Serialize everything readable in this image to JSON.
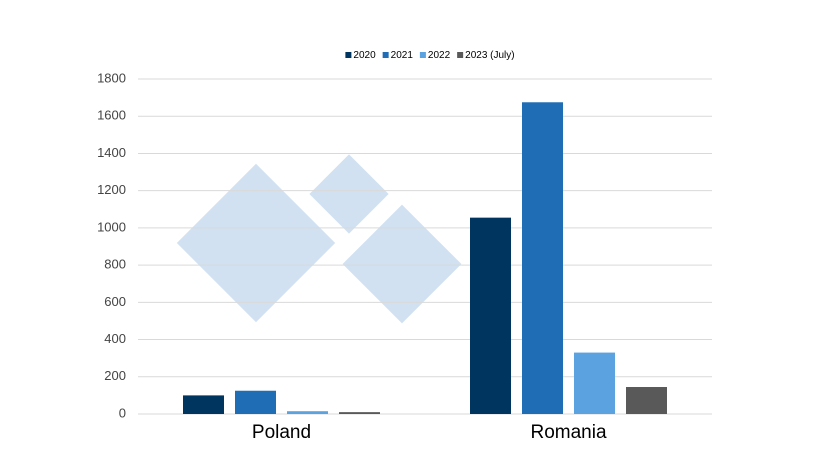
{
  "chart_data": {
    "type": "bar",
    "categories": [
      "Poland",
      "Romania"
    ],
    "series": [
      {
        "name": "2020",
        "color": "#003560",
        "values": [
          100,
          1055
        ]
      },
      {
        "name": "2021",
        "color": "#1f6eb5",
        "values": [
          125,
          1675
        ]
      },
      {
        "name": "2022",
        "color": "#5aa2e0",
        "values": [
          15,
          330
        ]
      },
      {
        "name": "2023 (July)",
        "color": "#595959",
        "values": [
          10,
          145
        ]
      }
    ],
    "ylim": [
      0,
      1800
    ],
    "yticks": [
      0,
      200,
      400,
      600,
      800,
      1000,
      1200,
      1400,
      1600,
      1800
    ],
    "grid": true,
    "legend": "top"
  }
}
